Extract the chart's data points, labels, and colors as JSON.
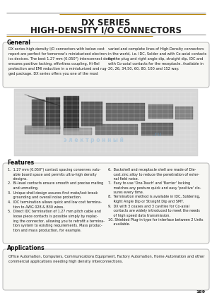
{
  "title_line1": "DX SERIES",
  "title_line2": "HIGH-DENSITY I/O CONNECTORS",
  "page_bg": "#ffffff",
  "section_general_title": "General",
  "general_text_left": "DX series high-density I/O connectors with below cost\nreport are perfect for tomorrow's miniaturized electron-\nics devices. The best 1.27 mm (0.050\") interconnect design\nensures positive locking, effortless coupling, Hi-Rel\nprotection and EMI reduction in a miniaturized and rug-\nged package. DX series offers you one of the most",
  "general_text_right": "varied and complete lines of High-Density connectors\nin the world, i.e. IDC, Solder and with Co-axial contacts\nfor the plug and right angle dip, straight dip, IDC and\nwith Co-axial contacts for the receptacle. Available in\n20, 26, 34,50, 60, 80, 100 and 152 way.",
  "features_title": "Features",
  "features_left": [
    "1.  1.27 mm (0.050\") contact spacing conserves valu-\n     able board space and permits ultra-high density\n     designs.",
    "2.  Bi-level contacts ensure smooth and precise mating\n     and unmating.",
    "3.  Unique shell design assures first mate/last break\n     grounding and overall noise protection.",
    "4.  IDC termination allows quick and low cost termina-\n     tion to AWG 028 & B30 wires.",
    "5.  Direct IDC termination of 1.27 mm pitch cable and\n     loose piece contacts is possible simply by replac-\n     ing the connector, allowing you to retrofit a termina-\n     tion system to existing requirements. Mass produc-\n     tion and mass production, for example."
  ],
  "features_right": [
    "6.  Backshell and receptacle shell are made of Die-\n     cast zinc alloy to reduce the penetration of exter-\n     nal field noise.",
    "7.  Easy to use 'One-Touch' and 'Barrier' locking\n     matches any posture quick and easy 'positive' clo-\n     sures every time.",
    "8.  Termination method is available in IDC, Soldering,\n     Right Angle Dip or Straight Dip and SMT.",
    "9.  DX with 3 coaxes and 3 cavities for Co-axial\n     contacts are widely introduced to meet the needs\n     of high speed data transmission.",
    "10. Shielded Plug-in type for interface between 2 Units\n     available."
  ],
  "applications_title": "Applications",
  "applications_text": "Office Automation, Computers, Communications Equipment, Factory Automation, Home Automation and other\ncommercial applications needing high density interconnections.",
  "page_number": "189",
  "title_color": "#1a1a1a",
  "section_title_color": "#111111",
  "line_color": "#666666",
  "orange_line_color": "#b8860b",
  "box_bg": "#f7f7f4",
  "text_color": "#1a1a1a",
  "border_color": "#999999"
}
